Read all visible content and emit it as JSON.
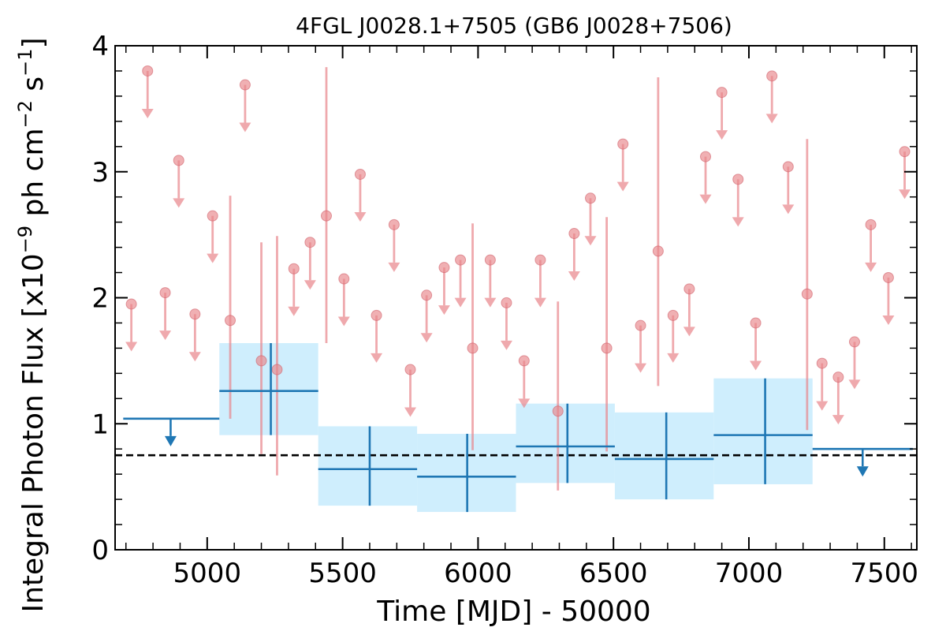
{
  "chart_data": {
    "type": "scatter",
    "title": "4FGL J0028.1+7505 (GB6 J0028+7506)",
    "xlabel": "Time [MJD] - 50000",
    "ylabel": "Integral Photon Flux [x10",
    "ylabel_exp1": "−9",
    "ylabel_mid": " ph cm",
    "ylabel_exp2": "−2",
    "ylabel_mid2": " s",
    "ylabel_exp3": "−1",
    "ylabel_end": "]",
    "xlim": [
      4660,
      7620
    ],
    "ylim": [
      0,
      4
    ],
    "x_ticks": [
      5000,
      5500,
      6000,
      6500,
      7000,
      7500
    ],
    "y_ticks": [
      0,
      1,
      2,
      3,
      4
    ],
    "reference_line": 0.75,
    "colors": {
      "fine_bins": "#e8858a",
      "coarse_bins": "#1f77b4",
      "coarse_band": "#cfeefd",
      "reference": "#000000"
    },
    "fine_bins": {
      "detections": [
        {
          "x": 5085,
          "y": 1.82,
          "ylo": 1.04,
          "yhi": 2.81
        },
        {
          "x": 5200,
          "y": 1.5,
          "ylo": 0.76,
          "yhi": 2.44
        },
        {
          "x": 5258,
          "y": 1.43,
          "ylo": 0.59,
          "yhi": 2.49
        },
        {
          "x": 5440,
          "y": 2.65,
          "ylo": 1.64,
          "yhi": 3.83
        },
        {
          "x": 5980,
          "y": 1.6,
          "ylo": 0.79,
          "yhi": 2.59
        },
        {
          "x": 6295,
          "y": 1.1,
          "ylo": 0.47,
          "yhi": 1.97
        },
        {
          "x": 6475,
          "y": 1.6,
          "ylo": 0.78,
          "yhi": 2.64
        },
        {
          "x": 6665,
          "y": 2.37,
          "ylo": 1.3,
          "yhi": 3.75
        },
        {
          "x": 7215,
          "y": 2.03,
          "ylo": 0.95,
          "yhi": 3.26
        }
      ],
      "upper_limits": [
        {
          "x": 4720,
          "y": 1.95
        },
        {
          "x": 4780,
          "y": 3.8
        },
        {
          "x": 4845,
          "y": 2.04
        },
        {
          "x": 4895,
          "y": 3.09
        },
        {
          "x": 4955,
          "y": 1.87
        },
        {
          "x": 5020,
          "y": 2.65
        },
        {
          "x": 5140,
          "y": 3.69
        },
        {
          "x": 5320,
          "y": 2.23
        },
        {
          "x": 5380,
          "y": 2.44
        },
        {
          "x": 5505,
          "y": 2.15
        },
        {
          "x": 5565,
          "y": 2.98
        },
        {
          "x": 5625,
          "y": 1.86
        },
        {
          "x": 5690,
          "y": 2.58
        },
        {
          "x": 5750,
          "y": 1.43
        },
        {
          "x": 5810,
          "y": 2.02
        },
        {
          "x": 5875,
          "y": 2.24
        },
        {
          "x": 5935,
          "y": 2.3
        },
        {
          "x": 6045,
          "y": 2.3
        },
        {
          "x": 6105,
          "y": 1.96
        },
        {
          "x": 6170,
          "y": 1.5
        },
        {
          "x": 6230,
          "y": 2.3
        },
        {
          "x": 6355,
          "y": 2.51
        },
        {
          "x": 6415,
          "y": 2.79
        },
        {
          "x": 6535,
          "y": 3.22
        },
        {
          "x": 6600,
          "y": 1.78
        },
        {
          "x": 6720,
          "y": 1.86
        },
        {
          "x": 6780,
          "y": 2.07
        },
        {
          "x": 6840,
          "y": 3.12
        },
        {
          "x": 6900,
          "y": 3.63
        },
        {
          "x": 6960,
          "y": 2.94
        },
        {
          "x": 7025,
          "y": 1.8
        },
        {
          "x": 7085,
          "y": 3.76
        },
        {
          "x": 7145,
          "y": 3.04
        },
        {
          "x": 7270,
          "y": 1.48
        },
        {
          "x": 7330,
          "y": 1.37
        },
        {
          "x": 7390,
          "y": 1.65
        },
        {
          "x": 7450,
          "y": 2.58
        },
        {
          "x": 7515,
          "y": 2.16
        },
        {
          "x": 7575,
          "y": 3.16
        }
      ]
    },
    "coarse_bins": {
      "detections": [
        {
          "x0": 5045,
          "x1": 5410,
          "x": 5235,
          "y": 1.26,
          "ylo": 0.91,
          "yhi": 1.64
        },
        {
          "x0": 5410,
          "x1": 5775,
          "x": 5600,
          "y": 0.64,
          "ylo": 0.35,
          "yhi": 0.98
        },
        {
          "x0": 5775,
          "x1": 6140,
          "x": 5960,
          "y": 0.58,
          "ylo": 0.3,
          "yhi": 0.92
        },
        {
          "x0": 6140,
          "x1": 6505,
          "x": 6330,
          "y": 0.82,
          "ylo": 0.53,
          "yhi": 1.16
        },
        {
          "x0": 6505,
          "x1": 6870,
          "x": 6695,
          "y": 0.72,
          "ylo": 0.4,
          "yhi": 1.09
        },
        {
          "x0": 6870,
          "x1": 7235,
          "x": 7060,
          "y": 0.91,
          "ylo": 0.52,
          "yhi": 1.36
        }
      ],
      "upper_limits": [
        {
          "x0": 4690,
          "x1": 5045,
          "x": 4865,
          "y": 1.04
        },
        {
          "x0": 7235,
          "x1": 7605,
          "x": 7420,
          "y": 0.8
        }
      ]
    }
  }
}
